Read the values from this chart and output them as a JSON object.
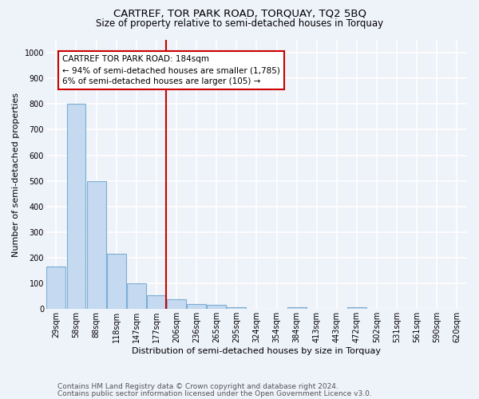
{
  "title": "CARTREF, TOR PARK ROAD, TORQUAY, TQ2 5BQ",
  "subtitle": "Size of property relative to semi-detached houses in Torquay",
  "xlabel": "Distribution of semi-detached houses by size in Torquay",
  "ylabel": "Number of semi-detached properties",
  "footnote1": "Contains HM Land Registry data © Crown copyright and database right 2024.",
  "footnote2": "Contains public sector information licensed under the Open Government Licence v3.0.",
  "categories": [
    "29sqm",
    "58sqm",
    "88sqm",
    "118sqm",
    "147sqm",
    "177sqm",
    "206sqm",
    "236sqm",
    "265sqm",
    "295sqm",
    "324sqm",
    "354sqm",
    "384sqm",
    "413sqm",
    "443sqm",
    "472sqm",
    "502sqm",
    "531sqm",
    "561sqm",
    "590sqm",
    "620sqm"
  ],
  "values": [
    165,
    800,
    500,
    215,
    100,
    55,
    38,
    20,
    15,
    8,
    0,
    0,
    8,
    0,
    0,
    8,
    0,
    0,
    0,
    0,
    0
  ],
  "bar_color": "#c5d9f0",
  "bar_edge_color": "#7bafd4",
  "vline_x": 5.5,
  "vline_color": "#cc0000",
  "annotation_text": "CARTREF TOR PARK ROAD: 184sqm\n← 94% of semi-detached houses are smaller (1,785)\n6% of semi-detached houses are larger (105) →",
  "annotation_box_color": "white",
  "annotation_box_edge": "#cc0000",
  "ylim": [
    0,
    1050
  ],
  "yticks": [
    0,
    100,
    200,
    300,
    400,
    500,
    600,
    700,
    800,
    900,
    1000
  ],
  "background_color": "#eef2f9",
  "grid_color": "white",
  "title_fontsize": 9.5,
  "subtitle_fontsize": 8.5,
  "label_fontsize": 8,
  "tick_fontsize": 7,
  "annotation_fontsize": 7.5,
  "footnote_fontsize": 6.5
}
